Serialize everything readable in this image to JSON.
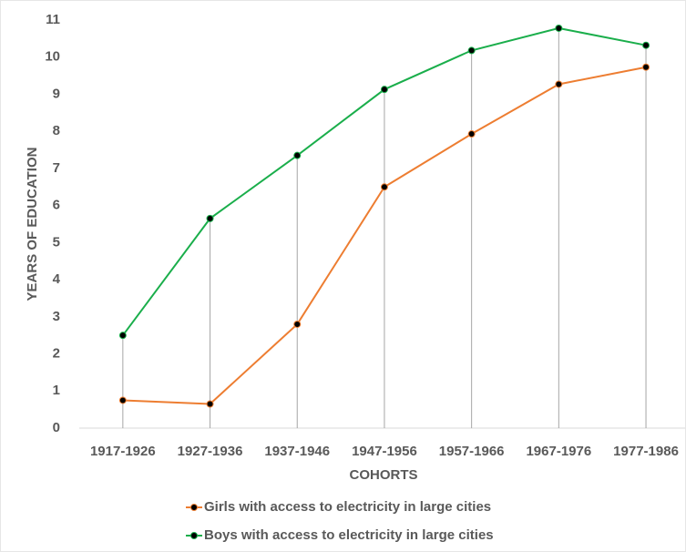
{
  "chart_data": {
    "type": "line",
    "categories": [
      "1917-1926",
      "1927-1936",
      "1937-1946",
      "1947-1956",
      "1957-1966",
      "1967-1976",
      "1977-1986"
    ],
    "series": [
      {
        "name": "Girls with access to electricity in large cities",
        "color": "#ed7d31",
        "values": [
          0.75,
          0.65,
          2.8,
          6.5,
          7.93,
          9.27,
          9.73
        ]
      },
      {
        "name": "Boys with access to electricity in large cities",
        "color": "#1aae4b",
        "values": [
          2.5,
          5.65,
          7.35,
          9.13,
          10.18,
          10.78,
          10.32
        ]
      }
    ],
    "xlabel": "COHORTS",
    "ylabel": "YEARS OF EDUCATION",
    "ylim": [
      0,
      11
    ],
    "yticks": [
      0,
      1,
      2,
      3,
      4,
      5,
      6,
      7,
      8,
      9,
      10,
      11
    ],
    "grid": false,
    "legend": "bottom"
  }
}
